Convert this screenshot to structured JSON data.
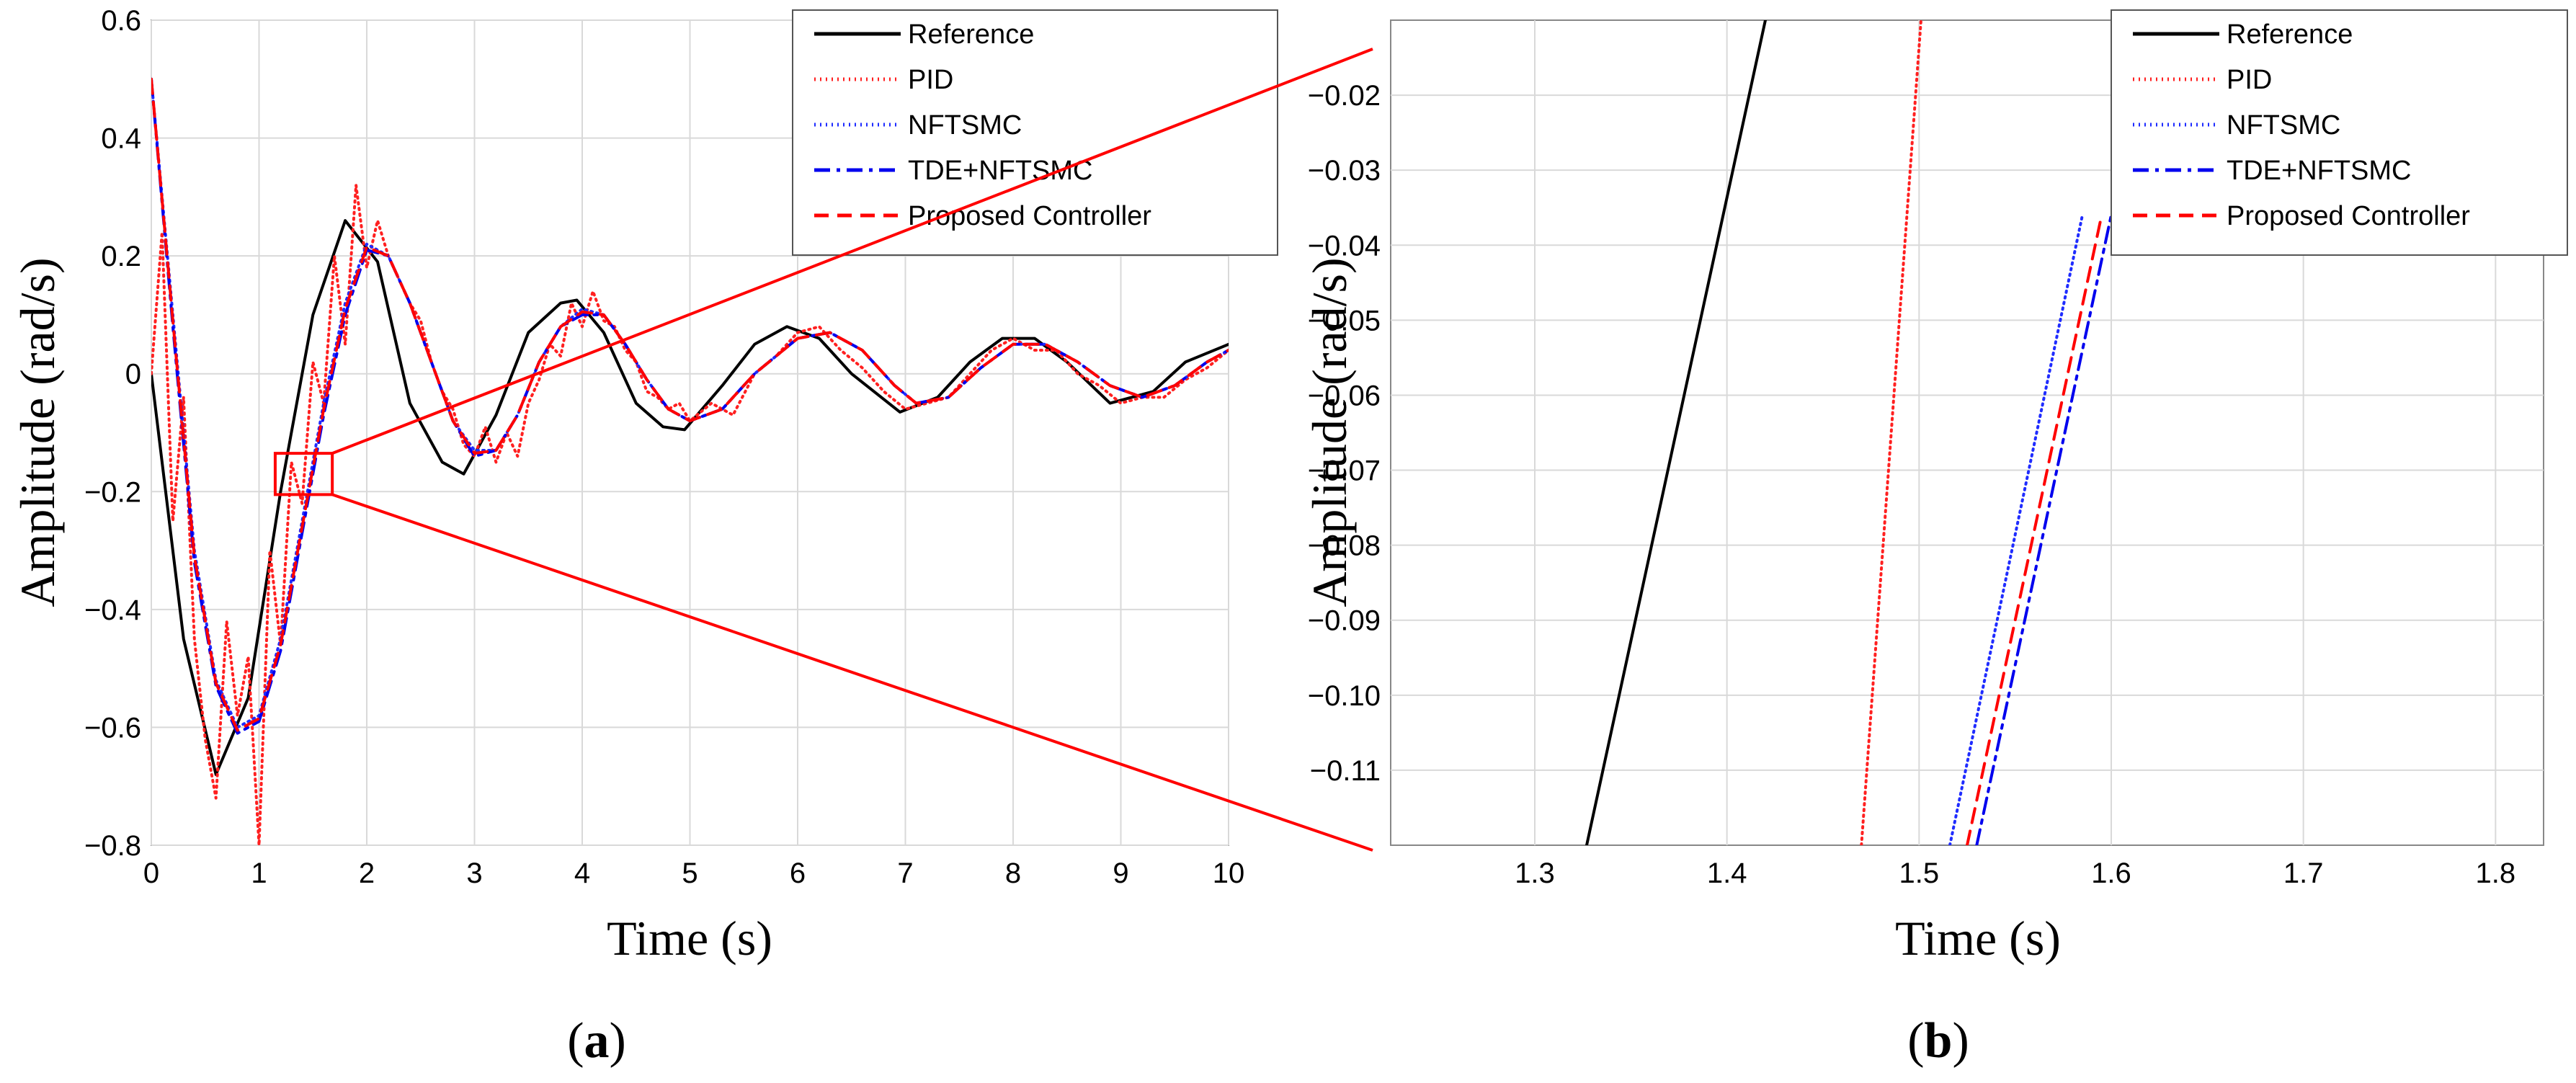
{
  "figure": {
    "panel_a_label": "(a)",
    "panel_b_label": "(b)"
  },
  "chart_data": [
    {
      "type": "line",
      "panel": "a",
      "xlabel": "Time (s)",
      "ylabel": "Amplitude (rad/s)",
      "xlim": [
        0,
        10
      ],
      "ylim": [
        -0.8,
        0.6
      ],
      "xticks": [
        0,
        1,
        2,
        3,
        4,
        5,
        6,
        7,
        8,
        9,
        10
      ],
      "xtick_labels": [
        "0",
        "1",
        "2",
        "3",
        "4",
        "5",
        "6",
        "7",
        "8",
        "9",
        "10"
      ],
      "yticks": [
        -0.8,
        -0.6,
        -0.4,
        -0.2,
        0,
        0.2,
        0.4,
        0.6
      ],
      "ytick_labels": [
        "−0.8",
        "−0.6",
        "−0.4",
        "−0.2",
        "0",
        "0.2",
        "0.4",
        "0.6"
      ],
      "grid": true,
      "legend_position": "top-right",
      "zoom_box": {
        "x": [
          1.15,
          1.68
        ],
        "y": [
          -0.205,
          -0.135
        ]
      },
      "series": [
        {
          "name": "Reference",
          "color": "#000000",
          "style": "solid",
          "x": [
            0,
            0.3,
            0.6,
            0.9,
            1.2,
            1.5,
            1.8,
            2.1,
            2.4,
            2.7,
            2.9,
            3.2,
            3.5,
            3.8,
            3.95,
            4.2,
            4.5,
            4.75,
            4.95,
            5.3,
            5.6,
            5.9,
            6.2,
            6.5,
            6.95,
            7.3,
            7.6,
            7.9,
            8.2,
            8.5,
            8.9,
            9.3,
            9.6,
            10
          ],
          "y": [
            0,
            -0.45,
            -0.68,
            -0.55,
            -0.2,
            0.1,
            0.26,
            0.19,
            -0.05,
            -0.15,
            -0.17,
            -0.07,
            0.07,
            0.12,
            0.125,
            0.07,
            -0.05,
            -0.09,
            -0.095,
            -0.02,
            0.05,
            0.08,
            0.06,
            0.0,
            -0.065,
            -0.04,
            0.02,
            0.06,
            0.06,
            0.02,
            -0.05,
            -0.03,
            0.02,
            0.05
          ]
        },
        {
          "name": "PID",
          "color": "#ff2020",
          "style": "dotted",
          "x": [
            0,
            0.1,
            0.2,
            0.3,
            0.4,
            0.5,
            0.6,
            0.7,
            0.8,
            0.9,
            1.0,
            1.1,
            1.2,
            1.3,
            1.4,
            1.5,
            1.6,
            1.7,
            1.8,
            1.9,
            2.0,
            2.1,
            2.2,
            2.3,
            2.4,
            2.5,
            2.6,
            2.7,
            2.8,
            2.9,
            3.0,
            3.1,
            3.2,
            3.3,
            3.4,
            3.5,
            3.6,
            3.7,
            3.8,
            3.9,
            4.0,
            4.1,
            4.2,
            4.3,
            4.4,
            4.5,
            4.6,
            4.7,
            4.8,
            4.9,
            5.0,
            5.2,
            5.4,
            5.6,
            5.8,
            6.0,
            6.2,
            6.4,
            6.6,
            6.8,
            7.0,
            7.2,
            7.4,
            7.6,
            7.8,
            8.0,
            8.2,
            8.4,
            8.6,
            8.8,
            9.0,
            9.2,
            9.4,
            9.6,
            9.8,
            10
          ],
          "y": [
            0,
            0.24,
            -0.25,
            -0.04,
            -0.45,
            -0.62,
            -0.72,
            -0.42,
            -0.58,
            -0.48,
            -0.8,
            -0.3,
            -0.46,
            -0.15,
            -0.22,
            0.02,
            -0.05,
            0.2,
            0.05,
            0.32,
            0.18,
            0.26,
            0.2,
            0.16,
            0.12,
            0.09,
            0.02,
            -0.03,
            -0.06,
            -0.12,
            -0.14,
            -0.09,
            -0.15,
            -0.1,
            -0.14,
            -0.05,
            -0.01,
            0.05,
            0.03,
            0.12,
            0.08,
            0.14,
            0.09,
            0.08,
            0.04,
            0.02,
            -0.03,
            -0.04,
            -0.06,
            -0.05,
            -0.08,
            -0.05,
            -0.07,
            0.0,
            0.03,
            0.07,
            0.08,
            0.04,
            0.01,
            -0.03,
            -0.06,
            -0.05,
            -0.04,
            0.0,
            0.04,
            0.06,
            0.04,
            0.04,
            0.0,
            -0.02,
            -0.05,
            -0.04,
            -0.04,
            -0.01,
            0.01,
            0.04
          ]
        },
        {
          "name": "NFTSMC",
          "color": "#1f2cff",
          "style": "dotted",
          "x": [
            0,
            0.2,
            0.4,
            0.6,
            0.8,
            1.0,
            1.2,
            1.4,
            1.6,
            1.8,
            2.0,
            2.2,
            2.4,
            2.6,
            2.8,
            3.0,
            3.2,
            3.4,
            3.6,
            3.8,
            4.0,
            4.2,
            4.4,
            4.6,
            4.8,
            5.0,
            5.3,
            5.6,
            6.0,
            6.3,
            6.6,
            6.9,
            7.1,
            7.4,
            7.7,
            8.0,
            8.3,
            8.6,
            8.9,
            9.2,
            9.5,
            9.8,
            10
          ],
          "y": [
            0.5,
            0.1,
            -0.3,
            -0.52,
            -0.6,
            -0.58,
            -0.45,
            -0.25,
            -0.05,
            0.12,
            0.22,
            0.2,
            0.12,
            0.02,
            -0.08,
            -0.13,
            -0.13,
            -0.07,
            0.02,
            0.08,
            0.11,
            0.1,
            0.05,
            -0.01,
            -0.06,
            -0.08,
            -0.06,
            0.0,
            0.06,
            0.07,
            0.04,
            -0.02,
            -0.05,
            -0.04,
            0.01,
            0.05,
            0.05,
            0.02,
            -0.02,
            -0.04,
            -0.02,
            0.02,
            0.04
          ]
        },
        {
          "name": "TDE+NFTSMC",
          "color": "#0000ee",
          "style": "dashdot",
          "x": [
            0,
            0.2,
            0.4,
            0.6,
            0.8,
            1.0,
            1.2,
            1.4,
            1.6,
            1.8,
            2.0,
            2.2,
            2.4,
            2.6,
            2.8,
            3.0,
            3.2,
            3.4,
            3.6,
            3.8,
            4.0,
            4.2,
            4.4,
            4.6,
            4.8,
            5.0,
            5.3,
            5.6,
            6.0,
            6.3,
            6.6,
            6.9,
            7.1,
            7.4,
            7.7,
            8.0,
            8.3,
            8.6,
            8.9,
            9.2,
            9.5,
            9.8,
            10
          ],
          "y": [
            0.5,
            0.08,
            -0.32,
            -0.53,
            -0.61,
            -0.59,
            -0.47,
            -0.27,
            -0.07,
            0.1,
            0.21,
            0.2,
            0.12,
            0.02,
            -0.08,
            -0.14,
            -0.13,
            -0.07,
            0.02,
            0.08,
            0.1,
            0.1,
            0.05,
            -0.01,
            -0.06,
            -0.08,
            -0.06,
            0.0,
            0.06,
            0.07,
            0.04,
            -0.02,
            -0.05,
            -0.04,
            0.01,
            0.05,
            0.05,
            0.02,
            -0.02,
            -0.04,
            -0.02,
            0.02,
            0.04
          ]
        },
        {
          "name": "Proposed Controller",
          "color": "#ff0000",
          "style": "dashed",
          "x": [
            0,
            0.2,
            0.4,
            0.6,
            0.8,
            1.0,
            1.2,
            1.4,
            1.6,
            1.8,
            2.0,
            2.2,
            2.4,
            2.6,
            2.8,
            3.0,
            3.2,
            3.4,
            3.6,
            3.8,
            4.0,
            4.2,
            4.4,
            4.6,
            4.8,
            5.0,
            5.3,
            5.6,
            6.0,
            6.3,
            6.6,
            6.9,
            7.1,
            7.4,
            7.7,
            8.0,
            8.3,
            8.6,
            8.9,
            9.2,
            9.5,
            9.8,
            10
          ],
          "y": [
            0.5,
            0.09,
            -0.31,
            -0.525,
            -0.605,
            -0.585,
            -0.46,
            -0.26,
            -0.06,
            0.11,
            0.215,
            0.2,
            0.12,
            0.02,
            -0.08,
            -0.135,
            -0.13,
            -0.07,
            0.02,
            0.08,
            0.105,
            0.1,
            0.05,
            -0.01,
            -0.06,
            -0.08,
            -0.06,
            0.0,
            0.06,
            0.07,
            0.04,
            -0.02,
            -0.05,
            -0.04,
            0.01,
            0.05,
            0.05,
            0.02,
            -0.02,
            -0.04,
            -0.02,
            0.02,
            0.04
          ]
        }
      ]
    },
    {
      "type": "line",
      "panel": "b",
      "xlabel": "Time (s)",
      "ylabel": "Amplitude (rad/s)",
      "xlim": [
        1.225,
        1.825
      ],
      "ylim": [
        -0.12,
        -0.01
      ],
      "xticks": [
        1.3,
        1.4,
        1.5,
        1.6,
        1.7,
        1.8
      ],
      "xtick_labels": [
        "1.3",
        "1.4",
        "1.5",
        "1.6",
        "1.7",
        "1.8"
      ],
      "yticks": [
        -0.11,
        -0.1,
        -0.09,
        -0.08,
        -0.07,
        -0.06,
        -0.05,
        -0.04,
        -0.03,
        -0.02
      ],
      "ytick_labels": [
        "−0.11",
        "−0.10",
        "−0.09",
        "−0.08",
        "−0.07",
        "−0.06",
        "−0.05",
        "−0.04",
        "−0.03",
        "−0.02"
      ],
      "grid": true,
      "legend_position": "top-right",
      "series": [
        {
          "name": "Reference",
          "color": "#000000",
          "style": "solid",
          "x": [
            1.327,
            1.42
          ],
          "y": [
            -0.12,
            -0.01
          ]
        },
        {
          "name": "PID",
          "color": "#ff2020",
          "style": "dotted",
          "x": [
            1.47,
            1.501
          ],
          "y": [
            -0.12,
            -0.01
          ]
        },
        {
          "name": "NFTSMC",
          "color": "#1f2cff",
          "style": "dotted",
          "x": [
            1.516,
            1.585
          ],
          "y": [
            -0.12,
            -0.036
          ]
        },
        {
          "name": "TDE+NFTSMC",
          "color": "#0000ee",
          "style": "dashdot",
          "x": [
            1.53,
            1.6
          ],
          "y": [
            -0.12,
            -0.036
          ]
        },
        {
          "name": "Proposed Controller",
          "color": "#ff0000",
          "style": "dashed",
          "x": [
            1.525,
            1.595
          ],
          "y": [
            -0.12,
            -0.036
          ]
        }
      ]
    }
  ]
}
